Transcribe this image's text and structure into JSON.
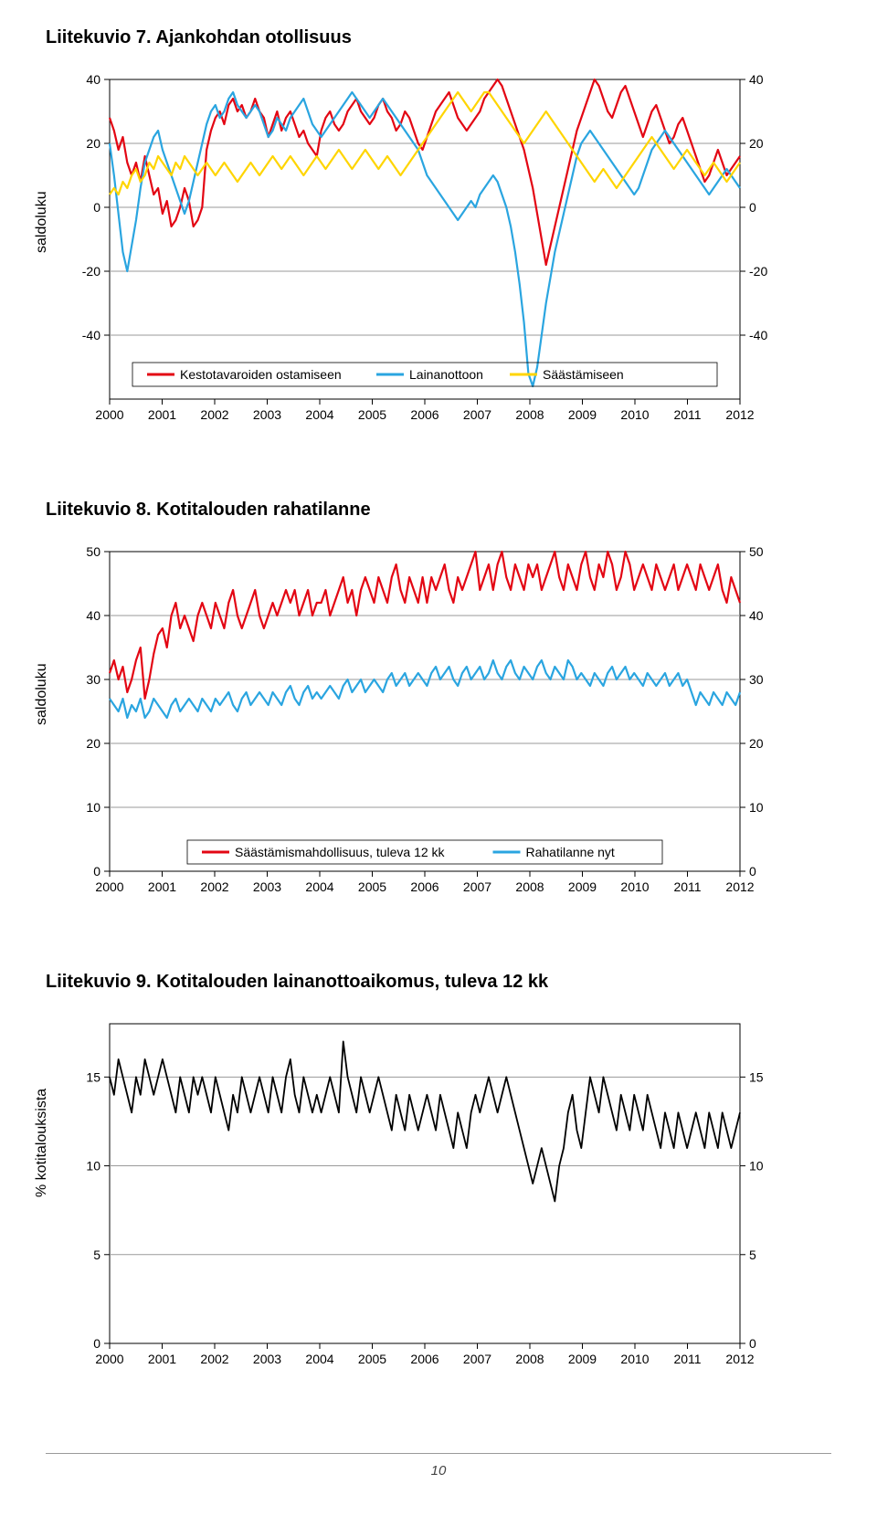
{
  "page_number": "10",
  "chart7": {
    "title": "Liitekuvio 7. Ajankohdan otollisuus",
    "type": "line",
    "ylabel": "saldoluku",
    "ylim": [
      -60,
      40
    ],
    "ytick_step": 20,
    "yticks": [
      -40,
      -20,
      0,
      20,
      40
    ],
    "xlim": [
      2000,
      2012
    ],
    "xticks": [
      2000,
      2001,
      2002,
      2003,
      2004,
      2005,
      2006,
      2007,
      2008,
      2009,
      2010,
      2011,
      2012
    ],
    "background_color": "#ffffff",
    "grid_color": "#9a9a9a",
    "legend": [
      {
        "label": "Kestotavaroiden ostamiseen",
        "color": "#e30613"
      },
      {
        "label": "Lainanottoon",
        "color": "#2aa5e0"
      },
      {
        "label": "Säästämiseen",
        "color": "#ffd500"
      }
    ],
    "series": [
      {
        "name": "Kestotavaroiden ostamiseen",
        "color": "#e30613",
        "line_width": 2.2,
        "y": [
          28,
          24,
          18,
          22,
          14,
          10,
          14,
          8,
          16,
          10,
          4,
          6,
          -2,
          2,
          -6,
          -4,
          0,
          6,
          2,
          -6,
          -4,
          0,
          18,
          24,
          28,
          30,
          26,
          32,
          34,
          30,
          32,
          28,
          30,
          34,
          30,
          28,
          22,
          26,
          30,
          24,
          28,
          30,
          26,
          22,
          24,
          20,
          18,
          16,
          24,
          28,
          30,
          26,
          24,
          26,
          30,
          32,
          34,
          30,
          28,
          26,
          28,
          32,
          34,
          30,
          28,
          24,
          26,
          30,
          28,
          24,
          20,
          18,
          22,
          26,
          30,
          32,
          34,
          36,
          32,
          28,
          26,
          24,
          26,
          28,
          30,
          34,
          36,
          38,
          40,
          38,
          34,
          30,
          26,
          22,
          18,
          12,
          6,
          -2,
          -10,
          -18,
          -12,
          -6,
          0,
          6,
          12,
          18,
          24,
          28,
          32,
          36,
          40,
          38,
          34,
          30,
          28,
          32,
          36,
          38,
          34,
          30,
          26,
          22,
          26,
          30,
          32,
          28,
          24,
          20,
          22,
          26,
          28,
          24,
          20,
          16,
          12,
          8,
          10,
          14,
          18,
          14,
          10,
          12,
          14,
          16
        ]
      },
      {
        "name": "Lainanottoon",
        "color": "#2aa5e0",
        "line_width": 2.2,
        "y": [
          20,
          10,
          -2,
          -14,
          -20,
          -12,
          -4,
          6,
          14,
          18,
          22,
          24,
          18,
          14,
          10,
          6,
          2,
          -2,
          2,
          8,
          14,
          20,
          26,
          30,
          32,
          28,
          30,
          34,
          36,
          32,
          30,
          28,
          30,
          32,
          30,
          26,
          22,
          24,
          28,
          26,
          24,
          28,
          30,
          32,
          34,
          30,
          26,
          24,
          22,
          24,
          26,
          28,
          30,
          32,
          34,
          36,
          34,
          32,
          30,
          28,
          30,
          32,
          34,
          32,
          30,
          28,
          26,
          24,
          22,
          20,
          18,
          14,
          10,
          8,
          6,
          4,
          2,
          0,
          -2,
          -4,
          -2,
          0,
          2,
          0,
          4,
          6,
          8,
          10,
          8,
          4,
          0,
          -6,
          -14,
          -24,
          -36,
          -52,
          -56,
          -50,
          -40,
          -30,
          -22,
          -14,
          -8,
          -2,
          4,
          10,
          16,
          20,
          22,
          24,
          22,
          20,
          18,
          16,
          14,
          12,
          10,
          8,
          6,
          4,
          6,
          10,
          14,
          18,
          20,
          22,
          24,
          22,
          20,
          18,
          16,
          14,
          12,
          10,
          8,
          6,
          4,
          6,
          8,
          10,
          12,
          10,
          8,
          6
        ]
      },
      {
        "name": "Säästämiseen",
        "color": "#ffd500",
        "line_width": 2.2,
        "y": [
          4,
          6,
          4,
          8,
          6,
          10,
          12,
          8,
          10,
          14,
          12,
          16,
          14,
          12,
          10,
          14,
          12,
          16,
          14,
          12,
          10,
          12,
          14,
          12,
          10,
          12,
          14,
          12,
          10,
          8,
          10,
          12,
          14,
          12,
          10,
          12,
          14,
          16,
          14,
          12,
          14,
          16,
          14,
          12,
          10,
          12,
          14,
          16,
          14,
          12,
          14,
          16,
          18,
          16,
          14,
          12,
          14,
          16,
          18,
          16,
          14,
          12,
          14,
          16,
          14,
          12,
          10,
          12,
          14,
          16,
          18,
          20,
          22,
          24,
          26,
          28,
          30,
          32,
          34,
          36,
          34,
          32,
          30,
          32,
          34,
          36,
          36,
          34,
          32,
          30,
          28,
          26,
          24,
          22,
          20,
          22,
          24,
          26,
          28,
          30,
          28,
          26,
          24,
          22,
          20,
          18,
          16,
          14,
          12,
          10,
          8,
          10,
          12,
          10,
          8,
          6,
          8,
          10,
          12,
          14,
          16,
          18,
          20,
          22,
          20,
          18,
          16,
          14,
          12,
          14,
          16,
          18,
          16,
          14,
          12,
          10,
          12,
          14,
          12,
          10,
          8,
          10,
          12,
          14
        ]
      }
    ]
  },
  "chart8": {
    "title": "Liitekuvio 8. Kotitalouden rahatilanne",
    "type": "line",
    "ylabel": "saldoluku",
    "ylim": [
      0,
      50
    ],
    "ytick_step": 10,
    "yticks": [
      0,
      10,
      20,
      30,
      40,
      50
    ],
    "xlim": [
      2000,
      2012
    ],
    "xticks": [
      2000,
      2001,
      2002,
      2003,
      2004,
      2005,
      2006,
      2007,
      2008,
      2009,
      2010,
      2011,
      2012
    ],
    "background_color": "#ffffff",
    "grid_color": "#9a9a9a",
    "legend": [
      {
        "label": "Säästämismahdollisuus, tuleva 12 kk",
        "color": "#e30613"
      },
      {
        "label": "Rahatilanne nyt",
        "color": "#2aa5e0"
      }
    ],
    "series": [
      {
        "name": "Säästämismahdollisuus, tuleva 12 kk",
        "color": "#e30613",
        "line_width": 2.2,
        "y": [
          31,
          33,
          30,
          32,
          28,
          30,
          33,
          35,
          27,
          30,
          34,
          37,
          38,
          35,
          40,
          42,
          38,
          40,
          38,
          36,
          40,
          42,
          40,
          38,
          42,
          40,
          38,
          42,
          44,
          40,
          38,
          40,
          42,
          44,
          40,
          38,
          40,
          42,
          40,
          42,
          44,
          42,
          44,
          40,
          42,
          44,
          40,
          42,
          42,
          44,
          40,
          42,
          44,
          46,
          42,
          44,
          40,
          44,
          46,
          44,
          42,
          46,
          44,
          42,
          46,
          48,
          44,
          42,
          46,
          44,
          42,
          46,
          42,
          46,
          44,
          46,
          48,
          44,
          42,
          46,
          44,
          46,
          48,
          50,
          44,
          46,
          48,
          44,
          48,
          50,
          46,
          44,
          48,
          46,
          44,
          48,
          46,
          48,
          44,
          46,
          48,
          50,
          46,
          44,
          48,
          46,
          44,
          48,
          50,
          46,
          44,
          48,
          46,
          50,
          48,
          44,
          46,
          50,
          48,
          44,
          46,
          48,
          46,
          44,
          48,
          46,
          44,
          46,
          48,
          44,
          46,
          48,
          46,
          44,
          48,
          46,
          44,
          46,
          48,
          44,
          42,
          46,
          44,
          42
        ]
      },
      {
        "name": "Rahatilanne nyt",
        "color": "#2aa5e0",
        "line_width": 2.2,
        "y": [
          27,
          26,
          25,
          27,
          24,
          26,
          25,
          27,
          24,
          25,
          27,
          26,
          25,
          24,
          26,
          27,
          25,
          26,
          27,
          26,
          25,
          27,
          26,
          25,
          27,
          26,
          27,
          28,
          26,
          25,
          27,
          28,
          26,
          27,
          28,
          27,
          26,
          28,
          27,
          26,
          28,
          29,
          27,
          26,
          28,
          29,
          27,
          28,
          27,
          28,
          29,
          28,
          27,
          29,
          30,
          28,
          29,
          30,
          28,
          29,
          30,
          29,
          28,
          30,
          31,
          29,
          30,
          31,
          29,
          30,
          31,
          30,
          29,
          31,
          32,
          30,
          31,
          32,
          30,
          29,
          31,
          32,
          30,
          31,
          32,
          30,
          31,
          33,
          31,
          30,
          32,
          33,
          31,
          30,
          32,
          31,
          30,
          32,
          33,
          31,
          30,
          32,
          31,
          30,
          33,
          32,
          30,
          31,
          30,
          29,
          31,
          30,
          29,
          31,
          32,
          30,
          31,
          32,
          30,
          31,
          30,
          29,
          31,
          30,
          29,
          30,
          31,
          29,
          30,
          31,
          29,
          30,
          28,
          26,
          28,
          27,
          26,
          28,
          27,
          26,
          28,
          27,
          26,
          28
        ]
      }
    ]
  },
  "chart9": {
    "title": "Liitekuvio 9. Kotitalouden lainanottoaikomus, tuleva 12 kk",
    "type": "line",
    "ylabel": "% kotitalouksista",
    "ylim": [
      0,
      18
    ],
    "ytick_step": 5,
    "yticks": [
      0,
      5,
      10,
      15
    ],
    "xlim": [
      2000,
      2012
    ],
    "xticks": [
      2000,
      2001,
      2002,
      2003,
      2004,
      2005,
      2006,
      2007,
      2008,
      2009,
      2010,
      2011,
      2012
    ],
    "background_color": "#ffffff",
    "grid_color": "#9a9a9a",
    "series": [
      {
        "name": "Lainanottoaikomus",
        "color": "#000000",
        "line_width": 1.8,
        "y": [
          15,
          14,
          16,
          15,
          14,
          13,
          15,
          14,
          16,
          15,
          14,
          15,
          16,
          15,
          14,
          13,
          15,
          14,
          13,
          15,
          14,
          15,
          14,
          13,
          15,
          14,
          13,
          12,
          14,
          13,
          15,
          14,
          13,
          14,
          15,
          14,
          13,
          15,
          14,
          13,
          15,
          16,
          14,
          13,
          15,
          14,
          13,
          14,
          13,
          14,
          15,
          14,
          13,
          17,
          15,
          14,
          13,
          15,
          14,
          13,
          14,
          15,
          14,
          13,
          12,
          14,
          13,
          12,
          14,
          13,
          12,
          13,
          14,
          13,
          12,
          14,
          13,
          12,
          11,
          13,
          12,
          11,
          13,
          14,
          13,
          14,
          15,
          14,
          13,
          14,
          15,
          14,
          13,
          12,
          11,
          10,
          9,
          10,
          11,
          10,
          9,
          8,
          10,
          11,
          13,
          14,
          12,
          11,
          13,
          15,
          14,
          13,
          15,
          14,
          13,
          12,
          14,
          13,
          12,
          14,
          13,
          12,
          14,
          13,
          12,
          11,
          13,
          12,
          11,
          13,
          12,
          11,
          12,
          13,
          12,
          11,
          13,
          12,
          11,
          13,
          12,
          11,
          12,
          13
        ]
      }
    ]
  }
}
